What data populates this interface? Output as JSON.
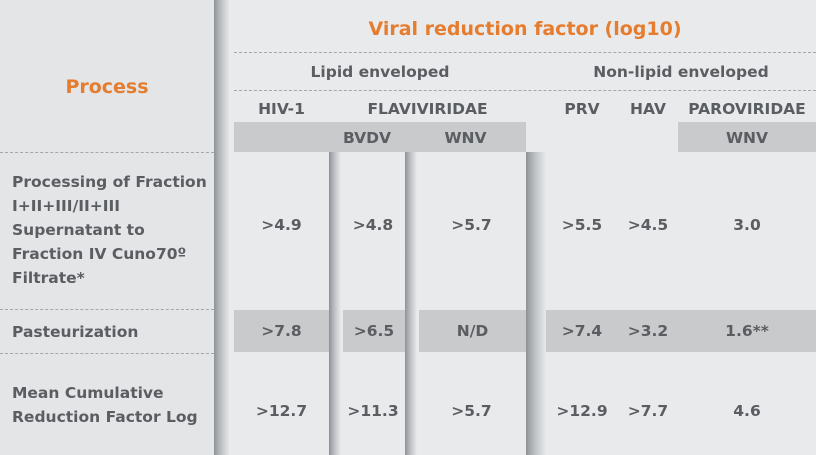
{
  "header": {
    "process_label": "Process",
    "title": "Viral reduction factor (log10)",
    "group_lipid": "Lipid enveloped",
    "group_nonlipid": "Non-lipid enveloped"
  },
  "columns": {
    "hiv1": "HIV-1",
    "flaviviridae": "FLAVIVIRIDAE",
    "bvdv": "BVDV",
    "wnv": "WNV",
    "prv": "PRV",
    "hav": "HAV",
    "paroviridae": "PAROVIRIDAE",
    "parvo_wnv": "WNV"
  },
  "rows": [
    {
      "label": "Processing of Fraction I+II+III/II+III Supernatant to Fraction IV Cuno70º Filtrate*",
      "hiv1": ">4.9",
      "bvdv": ">4.8",
      "wnv": ">5.7",
      "prv": ">5.5",
      "hav": ">4.5",
      "parvo": "3.0"
    },
    {
      "label": "Pasteurization",
      "hiv1": ">7.8",
      "bvdv": ">6.5",
      "wnv": "N/D",
      "prv": ">7.4",
      "hav": ">3.2",
      "parvo": "1.6**"
    },
    {
      "label": "Mean Cumulative Reduction Factor Log",
      "hiv1": ">12.7",
      "bvdv": ">11.3",
      "wnv": ">5.7",
      "prv": ">12.9",
      "hav": ">7.7",
      "parvo": "4.6"
    }
  ],
  "colors": {
    "accent": "#e57c2e",
    "text": "#5a5d61",
    "band": "#c9cacc",
    "background": "#e9eaeb"
  }
}
